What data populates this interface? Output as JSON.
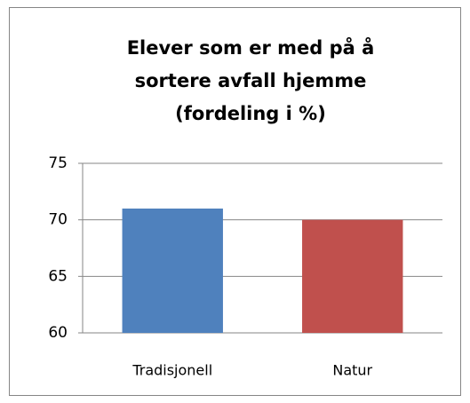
{
  "chart_data": {
    "type": "bar",
    "title": [
      "Elever som er med på å",
      "sortere avfall hjemme",
      "(fordeling i %)"
    ],
    "categories": [
      "Tradisjonell",
      "Natur"
    ],
    "values": [
      71,
      70
    ],
    "colors": [
      "#4f81bd",
      "#c0504d"
    ],
    "ylim": [
      60,
      75
    ],
    "yticks": [
      60,
      65,
      70,
      75
    ],
    "grid": true
  }
}
